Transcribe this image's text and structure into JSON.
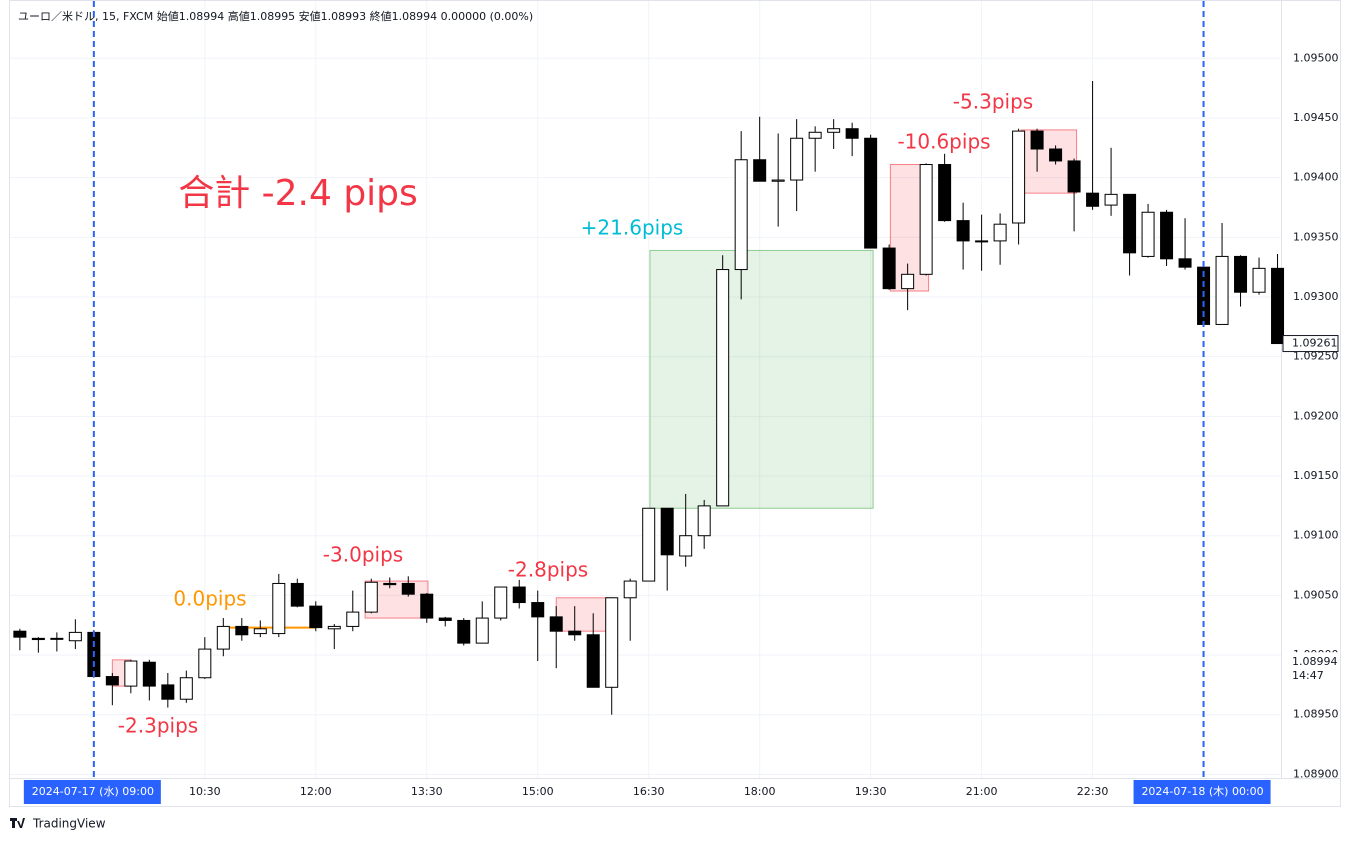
{
  "header": "ユーロ／米ドル, 15, FXCM  始値1.08994  高値1.08995  安値1.08993  終値1.08994  0.00000 (0.00%)",
  "footer": "TradingView",
  "chart_data": {
    "type": "candlestick",
    "title": "合計 -2.4 pips",
    "x": [
      480,
      495,
      510,
      525,
      540,
      555,
      570,
      585,
      600,
      615,
      630,
      645,
      660,
      675,
      690,
      705,
      720,
      735,
      750,
      765,
      780,
      795,
      810,
      825,
      840,
      855,
      870,
      885,
      900,
      915,
      930,
      945,
      960,
      975,
      990,
      1005,
      1020,
      1035,
      1050,
      1065,
      1080,
      1095,
      1110,
      1125,
      1140,
      1155,
      1170,
      1185,
      1200,
      1215,
      1230,
      1245,
      1260,
      1275,
      1290,
      1305,
      1320,
      1335,
      1350,
      1365,
      1380,
      1395,
      1410,
      1425,
      1440,
      1455,
      1470,
      1485,
      1500
    ],
    "open": [
      1.0902,
      1.09014,
      1.09014,
      1.09012,
      1.09019,
      1.08982,
      1.08974,
      1.08994,
      1.08975,
      1.08963,
      1.08981,
      1.09005,
      1.09024,
      1.09018,
      1.09018,
      1.0906,
      1.09041,
      1.09022,
      1.09024,
      1.09036,
      1.0906,
      1.0906,
      1.09051,
      1.09031,
      1.09029,
      1.0901,
      1.09031,
      1.09057,
      1.09044,
      1.09032,
      1.0902,
      1.09017,
      1.08973,
      1.09048,
      1.09062,
      1.09123,
      1.09083,
      1.091,
      1.09125,
      1.09323,
      1.09415,
      1.09397,
      1.09398,
      1.09433,
      1.09438,
      1.09441,
      1.09433,
      1.09341,
      1.09307,
      1.09319,
      1.09411,
      1.09364,
      1.09347,
      1.09347,
      1.09362,
      1.09439,
      1.09424,
      1.09414,
      1.09387,
      1.09377,
      1.09386,
      1.09334,
      1.09371,
      1.09332,
      1.09325,
      1.09277,
      1.09334,
      1.09304,
      1.09324
    ],
    "high": [
      1.09022,
      1.09015,
      1.09019,
      1.0903,
      1.09021,
      1.08985,
      1.08996,
      1.08996,
      1.08985,
      1.08987,
      1.09015,
      1.09031,
      1.09031,
      1.09029,
      1.09068,
      1.09064,
      1.09045,
      1.09026,
      1.09054,
      1.09064,
      1.09065,
      1.09066,
      1.09052,
      1.09032,
      1.09031,
      1.09045,
      1.09057,
      1.09063,
      1.09054,
      1.09041,
      1.09041,
      1.09035,
      1.09048,
      1.09064,
      1.09123,
      1.09123,
      1.09135,
      1.0913,
      1.09335,
      1.09439,
      1.09451,
      1.09437,
      1.09449,
      1.09443,
      1.09449,
      1.09446,
      1.09436,
      1.09344,
      1.09328,
      1.09412,
      1.0942,
      1.09379,
      1.09369,
      1.0937,
      1.09441,
      1.09441,
      1.09427,
      1.09416,
      1.09481,
      1.09425,
      1.09386,
      1.09378,
      1.09373,
      1.09366,
      1.09328,
      1.09362,
      1.09335,
      1.09333,
      1.09336
    ],
    "low": [
      1.09004,
      1.09002,
      1.09003,
      1.09005,
      1.08981,
      1.08958,
      1.08968,
      1.08962,
      1.08956,
      1.0896,
      1.0898,
      1.08999,
      1.09012,
      1.09015,
      1.09015,
      1.0904,
      1.0902,
      1.09005,
      1.0902,
      1.09035,
      1.09056,
      1.09049,
      1.09027,
      1.09024,
      1.09008,
      1.0901,
      1.09029,
      1.09039,
      1.08995,
      1.08989,
      1.09012,
      1.08973,
      1.0895,
      1.09012,
      1.09062,
      1.09054,
      1.09074,
      1.09089,
      1.09125,
      1.09298,
      1.09397,
      1.09359,
      1.09372,
      1.09405,
      1.09424,
      1.09418,
      1.09341,
      1.09306,
      1.09289,
      1.09318,
      1.09363,
      1.09323,
      1.09322,
      1.09327,
      1.09344,
      1.09405,
      1.09411,
      1.09355,
      1.09373,
      1.09368,
      1.09318,
      1.09333,
      1.09326,
      1.09323,
      1.09277,
      1.09277,
      1.09292,
      1.09302,
      1.09261
    ],
    "close": [
      1.09015,
      1.09013,
      1.09014,
      1.09019,
      1.08982,
      1.08975,
      1.08995,
      1.08974,
      1.08963,
      1.08981,
      1.09005,
      1.09024,
      1.09017,
      1.09022,
      1.0906,
      1.09041,
      1.09023,
      1.09024,
      1.09036,
      1.09061,
      1.09059,
      1.09051,
      1.09031,
      1.09029,
      1.0901,
      1.09031,
      1.09057,
      1.09044,
      1.09032,
      1.0902,
      1.09017,
      1.08973,
      1.09048,
      1.09062,
      1.09123,
      1.09084,
      1.091,
      1.09125,
      1.09323,
      1.09415,
      1.09397,
      1.09398,
      1.09433,
      1.09438,
      1.09441,
      1.09433,
      1.09341,
      1.09307,
      1.09319,
      1.09411,
      1.09364,
      1.09347,
      1.09347,
      1.09361,
      1.09439,
      1.09424,
      1.09414,
      1.09388,
      1.09376,
      1.09386,
      1.09337,
      1.09371,
      1.09332,
      1.09325,
      1.09277,
      1.09334,
      1.09304,
      1.09324,
      1.09261
    ],
    "up_color": "#ffffff",
    "down_color": "#000000",
    "xlim": [
      472,
      1502
    ],
    "ylim": [
      1.08897,
      1.09548
    ],
    "xticks": [
      {
        "value": 630,
        "label": "10:30"
      },
      {
        "value": 720,
        "label": "12:00"
      },
      {
        "value": 810,
        "label": "13:30"
      },
      {
        "value": 900,
        "label": "15:00"
      },
      {
        "value": 990,
        "label": "16:30"
      },
      {
        "value": 1080,
        "label": "18:00"
      },
      {
        "value": 1170,
        "label": "19:30"
      },
      {
        "value": 1260,
        "label": "21:00"
      },
      {
        "value": 1350,
        "label": "22:30"
      }
    ],
    "yticks": [
      {
        "value": 1.089,
        "label": "1.08900"
      },
      {
        "value": 1.0895,
        "label": "1.08950"
      },
      {
        "value": 1.09,
        "label": "1.09000"
      },
      {
        "value": 1.0905,
        "label": "1.09050"
      },
      {
        "value": 1.091,
        "label": "1.09100"
      },
      {
        "value": 1.0915,
        "label": "1.09150"
      },
      {
        "value": 1.092,
        "label": "1.09200"
      },
      {
        "value": 1.0925,
        "label": "1.09250"
      },
      {
        "value": 1.093,
        "label": "1.09300"
      },
      {
        "value": 1.0935,
        "label": "1.09350"
      },
      {
        "value": 1.094,
        "label": "1.09400"
      },
      {
        "value": 1.0945,
        "label": "1.09450"
      },
      {
        "value": 1.095,
        "label": "1.09500"
      }
    ],
    "grid": true,
    "session_markers": [
      {
        "value": 540,
        "label": "2024-07-17 (水)   09:00"
      },
      {
        "value": 1440,
        "label": "2024-07-18 (木)   00:00"
      }
    ],
    "marker_color": "#2962ff",
    "last_price": {
      "value": 1.09261,
      "label": "1.09261"
    },
    "crosshair": {
      "value": 1.08994,
      "label": "1.08994",
      "countdown": "14:47"
    },
    "annotations": [
      {
        "type": "rect",
        "x": [
          555,
          570
        ],
        "y": [
          1.08974,
          1.08996
        ],
        "color": "#f23645",
        "label": "-2.3pips"
      },
      {
        "type": "line",
        "x": [
          646,
          720
        ],
        "y": [
          1.09023,
          1.09023
        ],
        "color": "#ff9800",
        "label": "0.0pips"
      },
      {
        "type": "rect",
        "x": [
          760,
          811
        ],
        "y": [
          1.09031,
          1.09062
        ],
        "color": "#f23645",
        "label": "-3.0pips"
      },
      {
        "type": "rect",
        "x": [
          915,
          962
        ],
        "y": [
          1.0902,
          1.09048
        ],
        "color": "#f23645",
        "label": "-2.8pips"
      },
      {
        "type": "rect",
        "x": [
          991,
          1172
        ],
        "y": [
          1.09123,
          1.09339
        ],
        "color": "#4caf50",
        "label": "+21.6pips",
        "label_color": "#00bcd4"
      },
      {
        "type": "rect",
        "x": [
          1186,
          1217
        ],
        "y": [
          1.09305,
          1.09411
        ],
        "color": "#f23645",
        "label": "-10.6pips"
      },
      {
        "type": "rect",
        "x": [
          1292,
          1337
        ],
        "y": [
          1.09387,
          1.0944
        ],
        "color": "#f23645",
        "label": "-5.3pips"
      }
    ]
  }
}
